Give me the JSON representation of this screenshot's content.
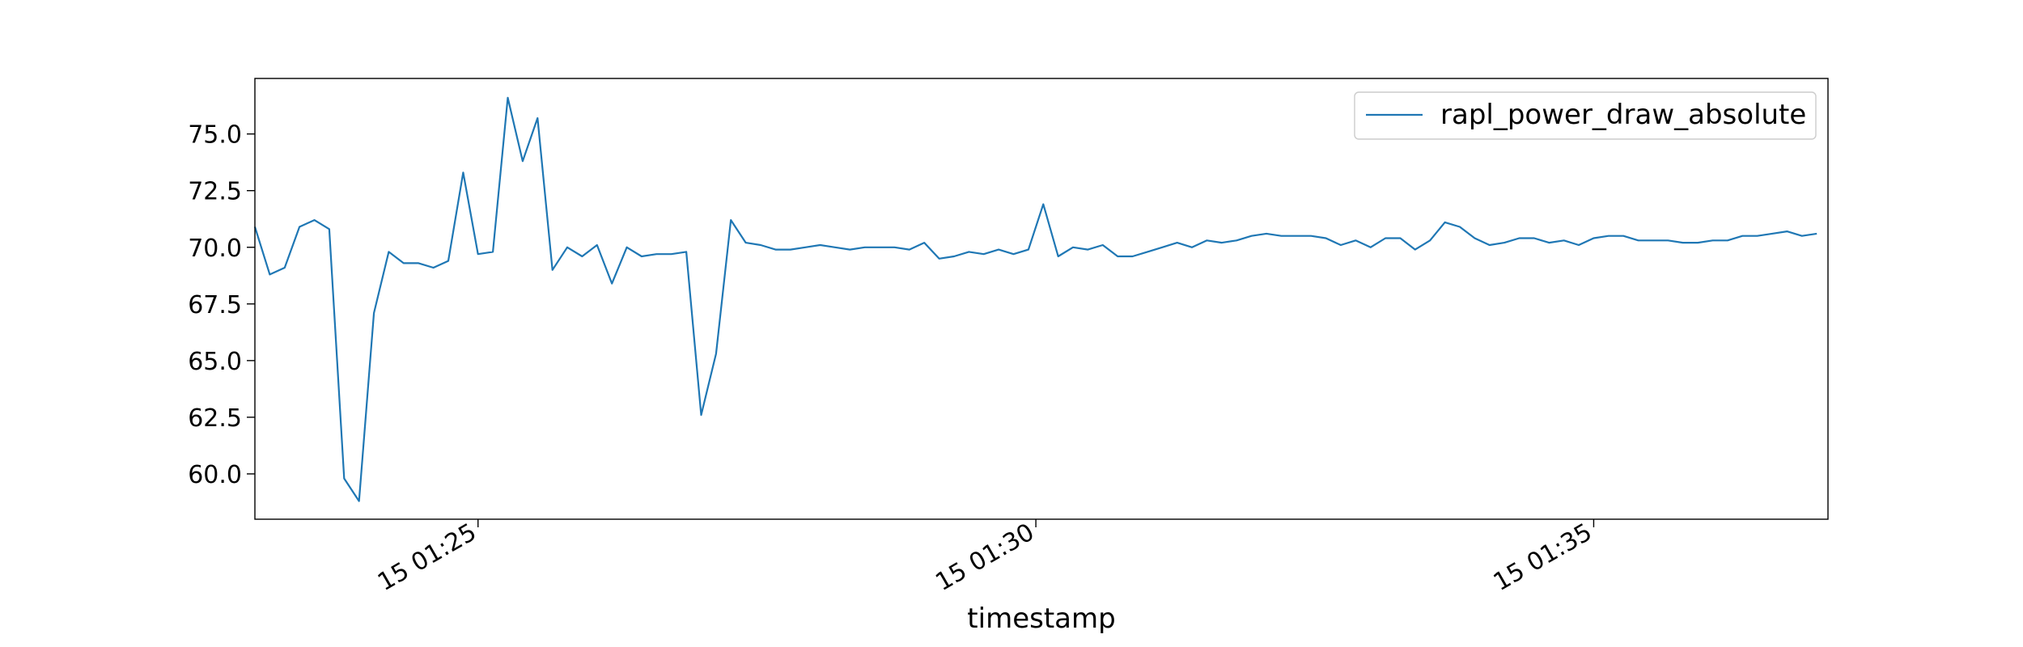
{
  "chart_data": {
    "type": "line",
    "title": "",
    "xlabel": "timestamp",
    "ylabel": "",
    "x_unit": "minutes",
    "xlim": [
      1403.0,
      1417.1
    ],
    "ylim": [
      58.0,
      77.45
    ],
    "grid": false,
    "legend": {
      "position": "top-right",
      "entries": [
        "rapl_power_draw_absolute"
      ]
    },
    "x_ticks": [
      {
        "value": 1405,
        "label": "15 01:25"
      },
      {
        "value": 1410,
        "label": "15 01:30"
      },
      {
        "value": 1415,
        "label": "15 01:35"
      }
    ],
    "y_ticks": [
      {
        "value": 60.0,
        "label": "60.0"
      },
      {
        "value": 62.5,
        "label": "62.5"
      },
      {
        "value": 65.0,
        "label": "65.0"
      },
      {
        "value": 67.5,
        "label": "67.5"
      },
      {
        "value": 70.0,
        "label": "70.0"
      },
      {
        "value": 72.5,
        "label": "72.5"
      },
      {
        "value": 75.0,
        "label": "75.0"
      }
    ],
    "series": [
      {
        "name": "rapl_power_draw_absolute",
        "color": "#1f77b4",
        "x_start": 1403.0,
        "x_step": 0.13333,
        "values": [
          70.9,
          68.8,
          69.1,
          70.9,
          71.2,
          70.8,
          59.8,
          58.8,
          67.1,
          69.8,
          69.3,
          69.3,
          69.1,
          69.4,
          73.3,
          69.7,
          69.8,
          76.6,
          73.8,
          75.7,
          69.0,
          70.0,
          69.6,
          70.1,
          68.4,
          70.0,
          69.6,
          69.7,
          69.7,
          69.8,
          62.6,
          65.3,
          71.2,
          70.2,
          70.1,
          69.9,
          69.9,
          70.0,
          70.1,
          70.0,
          69.9,
          70.0,
          70.0,
          70.0,
          69.9,
          70.2,
          69.5,
          69.6,
          69.8,
          69.7,
          69.9,
          69.7,
          69.9,
          71.9,
          69.6,
          70.0,
          69.9,
          70.1,
          69.6,
          69.6,
          69.8,
          70.0,
          70.2,
          70.0,
          70.3,
          70.2,
          70.3,
          70.5,
          70.6,
          70.5,
          70.5,
          70.5,
          70.4,
          70.1,
          70.3,
          70.0,
          70.4,
          70.4,
          69.9,
          70.3,
          71.1,
          70.9,
          70.4,
          70.1,
          70.2,
          70.4,
          70.4,
          70.2,
          70.3,
          70.1,
          70.4,
          70.5,
          70.5,
          70.3,
          70.3,
          70.3,
          70.2,
          70.2,
          70.3,
          70.3,
          70.5,
          70.5,
          70.6,
          70.7,
          70.5,
          70.6
        ]
      }
    ]
  }
}
